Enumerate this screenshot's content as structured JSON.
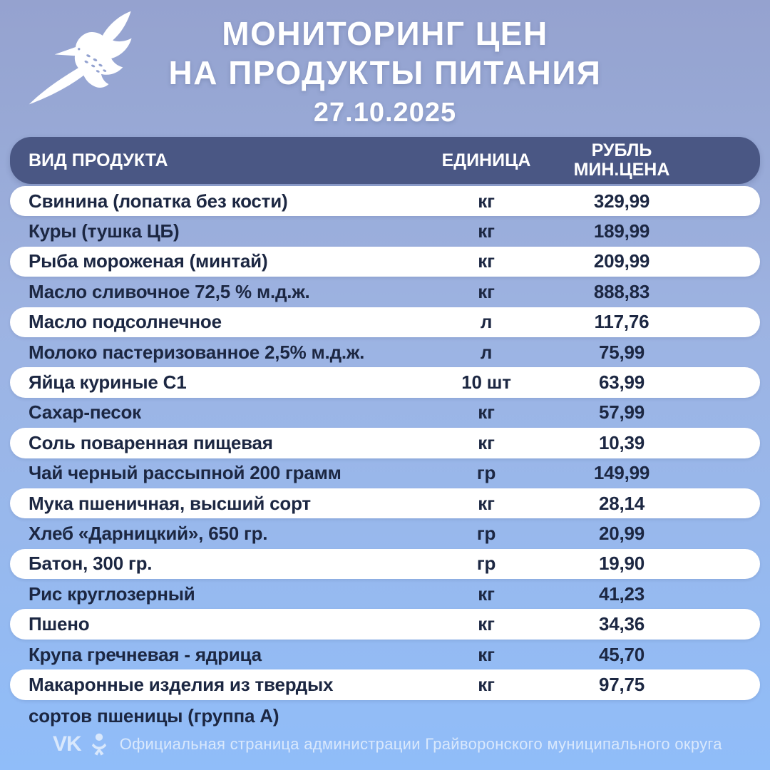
{
  "header": {
    "title_line1": "МОНИТОРИНГ ЦЕН",
    "title_line2": "НА ПРОДУКТЫ ПИТАНИЯ",
    "date": "27.10.2025",
    "logo": "white-bird-emblem"
  },
  "chart_data": {
    "type": "table",
    "title": "МОНИТОРИНГ ЦЕН НА ПРОДУКТЫ ПИТАНИЯ",
    "date": "27.10.2025",
    "columns": {
      "product": "ВИД ПРОДУКТА",
      "unit": "ЕДИНИЦА",
      "price_line1": "РУБЛЬ",
      "price_line2": "МИН.ЦЕНА"
    },
    "rows": [
      {
        "product": "Свинина (лопатка без кости)",
        "unit": "кг",
        "price": "329,99"
      },
      {
        "product": "Куры (тушка ЦБ)",
        "unit": "кг",
        "price": "189,99"
      },
      {
        "product": "Рыба мороженая (минтай)",
        "unit": "кг",
        "price": "209,99"
      },
      {
        "product": "Масло сливочное 72,5 % м.д.ж.",
        "unit": "кг",
        "price": "888,83"
      },
      {
        "product": "Масло подсолнечное",
        "unit": "л",
        "price": "117,76"
      },
      {
        "product": "Молоко пастеризованное 2,5% м.д.ж.",
        "unit": "л",
        "price": "75,99"
      },
      {
        "product": "Яйца куриные С1",
        "unit": "10 шт",
        "price": "63,99"
      },
      {
        "product": "Сахар-песок",
        "unit": "кг",
        "price": "57,99"
      },
      {
        "product": "Соль поваренная пищевая",
        "unit": "кг",
        "price": "10,39"
      },
      {
        "product": "Чай черный рассыпной 200 грамм",
        "unit": "гр",
        "price": "149,99"
      },
      {
        "product": "Мука пшеничная, высший сорт",
        "unit": "кг",
        "price": "28,14"
      },
      {
        "product": "Хлеб «Дарницкий», 650 гр.",
        "unit": "гр",
        "price": "20,99"
      },
      {
        "product": "Батон, 300 гр.",
        "unit": "гр",
        "price": "19,90"
      },
      {
        "product": "Рис круглозерный",
        "unit": "кг",
        "price": "41,23"
      },
      {
        "product": "Пшено",
        "unit": "кг",
        "price": "34,36"
      },
      {
        "product": "Крупа гречневая - ядрица",
        "unit": "кг",
        "price": "45,70"
      },
      {
        "product": "Макаронные изделия из твердых",
        "product_line2": "сортов пшеницы (группа А)",
        "unit": "кг",
        "price": "97,75"
      }
    ]
  },
  "footer": {
    "icons": [
      "vk-icon",
      "ok-icon"
    ],
    "vk_label": "VK",
    "text": "Официальная страница администрации Грайворонского муниципального округа"
  },
  "colors": {
    "background_top": "#95a2cf",
    "background_bottom": "#90bdf9",
    "header_bar": "#4a5784",
    "row_white": "#ffffff",
    "row_text": "#1c2742",
    "title_text": "#ffffff",
    "footer_text": "#e9f2fd"
  }
}
